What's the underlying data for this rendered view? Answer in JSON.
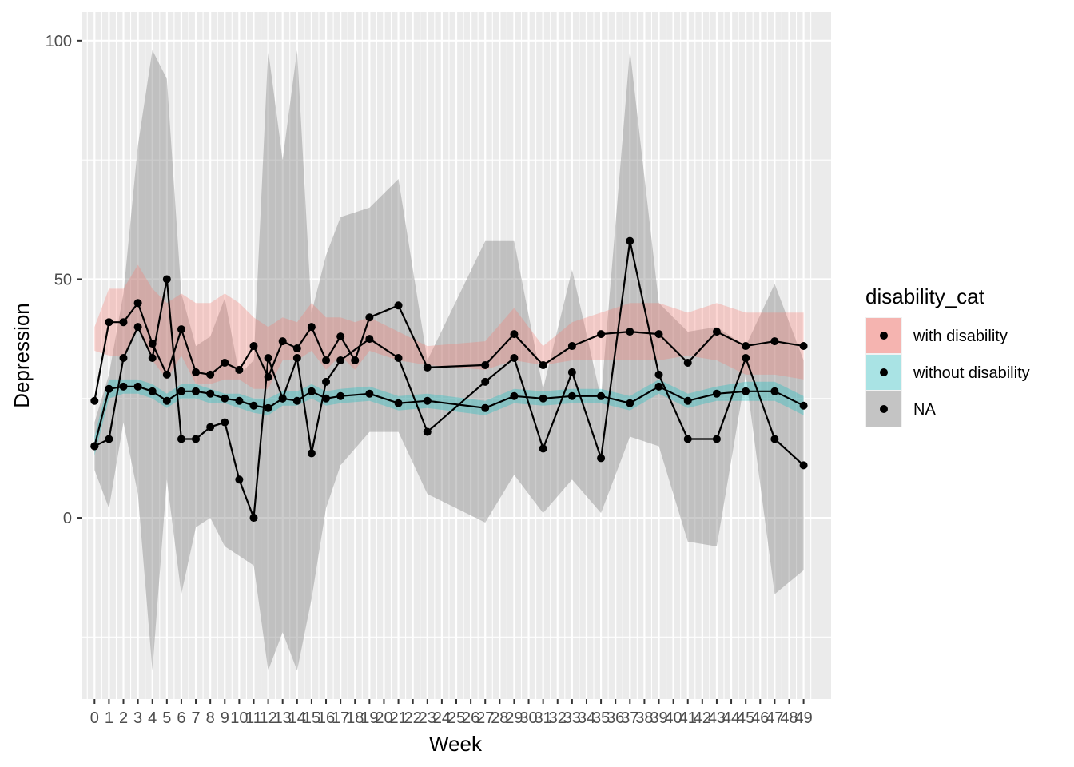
{
  "chart_data": {
    "type": "line",
    "xlabel": "Week",
    "ylabel": "Depression",
    "x_ticks": [
      "0",
      "1",
      "2",
      "3",
      "4",
      "5",
      "6",
      "7",
      "8",
      "9",
      "10",
      "11",
      "12",
      "13",
      "14",
      "15",
      "16",
      "17",
      "18",
      "19",
      "20",
      "21",
      "22",
      "23",
      "24",
      "25",
      "26",
      "27",
      "28",
      "29",
      "30",
      "31",
      "32",
      "33",
      "34",
      "35",
      "36",
      "37",
      "38",
      "39",
      "40",
      "41",
      "42",
      "43",
      "44",
      "45",
      "46",
      "47",
      "48",
      "49"
    ],
    "y_ticks": [
      0,
      50,
      100
    ],
    "ylim": [
      -38,
      106
    ],
    "xlim": [
      -0.9,
      50.9
    ],
    "grid": true,
    "legend": {
      "title": "disability_cat",
      "position": "right",
      "entries": [
        "with disability",
        "without disability",
        "NA"
      ]
    },
    "colors": {
      "panel_bg": "#ebebeb",
      "grid_major": "#ffffff",
      "line": "#000000",
      "with disability": "#f8766d",
      "without disability": "#00bfc4",
      "NA": "#7f7f7f"
    },
    "series": [
      {
        "name": "with disability",
        "x": [
          0,
          1,
          2,
          3,
          4,
          5,
          6,
          7,
          8,
          9,
          10,
          11,
          12,
          13,
          14,
          15,
          16,
          17,
          18,
          19,
          21,
          23,
          27,
          29,
          31,
          33,
          35,
          37,
          39,
          41,
          43,
          45,
          47,
          49
        ],
        "y": [
          24.5,
          41,
          41,
          45,
          36.5,
          30,
          39.5,
          30.5,
          30,
          32.5,
          31,
          36,
          29.5,
          37,
          35.5,
          40,
          33,
          38,
          33,
          42,
          44.5,
          31.5,
          32,
          38.5,
          32,
          36,
          38.5,
          39,
          38.5,
          32.5,
          39,
          36,
          37,
          36
        ],
        "lower": [
          35,
          34,
          34,
          40,
          33,
          29,
          34,
          28,
          28,
          29,
          29,
          27,
          27,
          33,
          33,
          35,
          31,
          34,
          31,
          35,
          33,
          32,
          31,
          33,
          32,
          33,
          33,
          33,
          33,
          34,
          33,
          30,
          30,
          29
        ],
        "upper": [
          40,
          48,
          48,
          53,
          48,
          45,
          47,
          45,
          45,
          47,
          45,
          42,
          40,
          42,
          41,
          45,
          42,
          42,
          41,
          42,
          39,
          36,
          37,
          44,
          36,
          41,
          43,
          45,
          45,
          43,
          45,
          43,
          43,
          43
        ]
      },
      {
        "name": "without disability",
        "x": [
          0,
          1,
          2,
          3,
          4,
          5,
          6,
          7,
          8,
          9,
          10,
          11,
          12,
          13,
          14,
          15,
          16,
          17,
          19,
          21,
          23,
          27,
          29,
          31,
          33,
          35,
          37,
          39,
          41,
          43,
          45,
          47,
          49
        ],
        "y": [
          15,
          27,
          27.5,
          27.5,
          26.5,
          24.5,
          26.5,
          26.5,
          26,
          25,
          24.5,
          23.5,
          23,
          25,
          24.5,
          26.5,
          25,
          25.5,
          26,
          24,
          24.5,
          23,
          25.5,
          25,
          25.5,
          25.5,
          24,
          27.5,
          24.5,
          26,
          26.5,
          26.5,
          23.5
        ],
        "lower": [
          13,
          25,
          26,
          26,
          25,
          23,
          25,
          25,
          24,
          24,
          23,
          22,
          21.5,
          23.5,
          23.5,
          25,
          23.5,
          24,
          24.5,
          22.5,
          23,
          21.5,
          24,
          23.5,
          24,
          24,
          22.5,
          26,
          23,
          24.5,
          24.5,
          24.5,
          21.5
        ],
        "upper": [
          17,
          29,
          29,
          29,
          28,
          26,
          28,
          28,
          27,
          26,
          26,
          25,
          25,
          26.5,
          26.5,
          28,
          26.5,
          27,
          27.5,
          25.5,
          26,
          24.5,
          27,
          26.5,
          27,
          27,
          25.5,
          29,
          26,
          27.5,
          28.5,
          28.5,
          25.5
        ]
      },
      {
        "name": "NA",
        "x": [
          0,
          1,
          2,
          3,
          4,
          5,
          6,
          7,
          8,
          9,
          10,
          11,
          12,
          13,
          14,
          15,
          16,
          17,
          19,
          21,
          23,
          27,
          29,
          31,
          33,
          35,
          37,
          39,
          41,
          43,
          45,
          47,
          49
        ],
        "y": [
          15,
          16.5,
          33.5,
          40,
          33.5,
          50,
          16.5,
          16.5,
          19,
          20,
          8,
          0,
          33.5,
          25,
          33.5,
          13.5,
          28.5,
          33,
          37.5,
          33.5,
          18,
          28.5,
          33.5,
          14.5,
          30.5,
          12.5,
          58,
          30,
          16.5,
          16.5,
          33.5,
          16.5,
          11
        ],
        "lower": [
          10,
          2,
          20,
          5,
          -32,
          8,
          -16,
          -2,
          0,
          -6,
          -8,
          -10,
          -32,
          -24,
          -32,
          -17,
          2,
          11,
          18,
          18,
          5,
          -1,
          9,
          1,
          8,
          1,
          17,
          15,
          -5,
          -6,
          30,
          -16,
          -11
        ],
        "upper": [
          20,
          30,
          47,
          78,
          98,
          92,
          47,
          36,
          38,
          46,
          30,
          33,
          98,
          75,
          98,
          43,
          55,
          63,
          65,
          71,
          33,
          58,
          58,
          27,
          52,
          25,
          98,
          45,
          39,
          40,
          36,
          49,
          33
        ]
      }
    ]
  }
}
